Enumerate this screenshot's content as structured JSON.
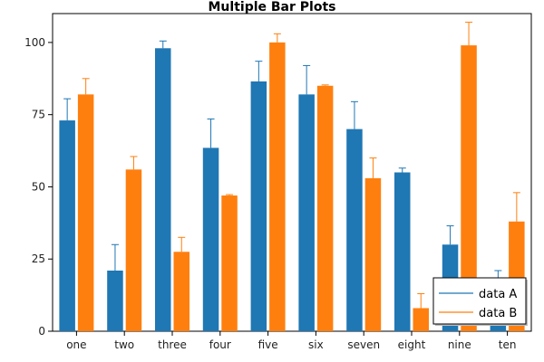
{
  "chart_data": {
    "type": "bar",
    "title": "Multiple Bar Plots",
    "xlabel": "",
    "ylabel": "",
    "categories": [
      "one",
      "two",
      "three",
      "four",
      "five",
      "six",
      "seven",
      "eight",
      "nine",
      "ten"
    ],
    "series": [
      {
        "name": "data A",
        "color": "#1f77b4",
        "values": [
          73,
          21,
          98,
          63.5,
          86.5,
          82,
          70,
          55,
          30,
          16
        ],
        "errors": [
          7.5,
          9,
          2.5,
          10,
          7,
          10,
          9.5,
          1.5,
          6.5,
          5
        ]
      },
      {
        "name": "data B",
        "color": "#ff7f0e",
        "values": [
          82,
          56,
          27.5,
          47,
          100,
          85,
          53,
          8,
          99,
          38
        ],
        "errors": [
          5.5,
          4.5,
          5,
          0.3,
          3,
          0.3,
          7,
          5,
          8,
          10
        ]
      }
    ],
    "ylim": [
      0,
      110
    ],
    "yticks": [
      0,
      25,
      50,
      75,
      100
    ],
    "grid": false,
    "legend_position": "bottom-right"
  }
}
